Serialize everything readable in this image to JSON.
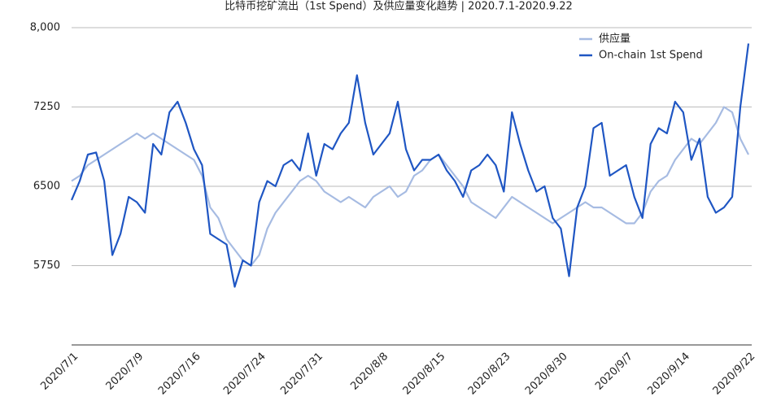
{
  "chart_data": {
    "type": "line",
    "title": "比特币挖矿流出（1st Spend）及供应量变化趋势 | 2020.7.1-2020.9.22",
    "categories": [
      "2020/7/1",
      null,
      null,
      null,
      null,
      null,
      null,
      null,
      "2020/7/9",
      null,
      null,
      null,
      null,
      null,
      null,
      "2020/7/16",
      null,
      null,
      null,
      null,
      null,
      null,
      null,
      "2020/7/24",
      null,
      null,
      null,
      null,
      null,
      null,
      "2020/7/31",
      null,
      null,
      null,
      null,
      null,
      null,
      null,
      "2020/8/8",
      null,
      null,
      null,
      null,
      null,
      null,
      "2020/8/15",
      null,
      null,
      null,
      null,
      null,
      null,
      null,
      "2020/8/23",
      null,
      null,
      null,
      null,
      null,
      null,
      "2020/8/30",
      null,
      null,
      null,
      null,
      null,
      null,
      null,
      "2020/9/7",
      null,
      null,
      null,
      null,
      null,
      null,
      "2020/9/14",
      null,
      null,
      null,
      null,
      null,
      null,
      null,
      "2020/9/22"
    ],
    "series": [
      {
        "name": "供应量",
        "color": "#a6bbe2",
        "values": [
          6550,
          6600,
          6700,
          6750,
          6800,
          6850,
          6900,
          6950,
          7000,
          6950,
          7000,
          6950,
          6900,
          6850,
          6800,
          6750,
          6600,
          6300,
          6200,
          6000,
          5900,
          5800,
          5750,
          5850,
          6100,
          6250,
          6350,
          6450,
          6550,
          6600,
          6550,
          6450,
          6400,
          6350,
          6400,
          6350,
          6300,
          6400,
          6450,
          6500,
          6400,
          6450,
          6600,
          6650,
          6750,
          6800,
          6700,
          6600,
          6500,
          6350,
          6300,
          6250,
          6200,
          6300,
          6400,
          6350,
          6300,
          6250,
          6200,
          6150,
          6200,
          6250,
          6300,
          6350,
          6300,
          6300,
          6250,
          6200,
          6150,
          6150,
          6250,
          6450,
          6550,
          6600,
          6750,
          6850,
          6950,
          6900,
          7000,
          7100,
          7250,
          7200,
          6950,
          6800
        ]
      },
      {
        "name": "On-chain 1st Spend",
        "color": "#1f56c3",
        "values": [
          6370,
          6550,
          6800,
          6820,
          6550,
          5850,
          6050,
          6400,
          6350,
          6250,
          6900,
          6800,
          7200,
          7300,
          7100,
          6850,
          6700,
          6050,
          6000,
          5950,
          5550,
          5800,
          5750,
          6350,
          6550,
          6500,
          6700,
          6750,
          6650,
          7000,
          6600,
          6900,
          6850,
          7000,
          7100,
          7550,
          7100,
          6800,
          6900,
          7000,
          7300,
          6850,
          6650,
          6750,
          6750,
          6800,
          6650,
          6550,
          6400,
          6650,
          6700,
          6800,
          6700,
          6450,
          7200,
          6900,
          6650,
          6450,
          6500,
          6200,
          6100,
          5650,
          6300,
          6500,
          7050,
          7100,
          6600,
          6650,
          6700,
          6400,
          6200,
          6900,
          7050,
          7000,
          7300,
          7200,
          6750,
          6950,
          6400,
          6250,
          6300,
          6400,
          7250,
          7850
        ]
      }
    ],
    "ylim": [
      5000,
      8000
    ],
    "yticks": [
      5750,
      6500,
      7250,
      {
        "value": 8000,
        "label": "8,000"
      }
    ],
    "grid": true,
    "legend": "upper right"
  }
}
